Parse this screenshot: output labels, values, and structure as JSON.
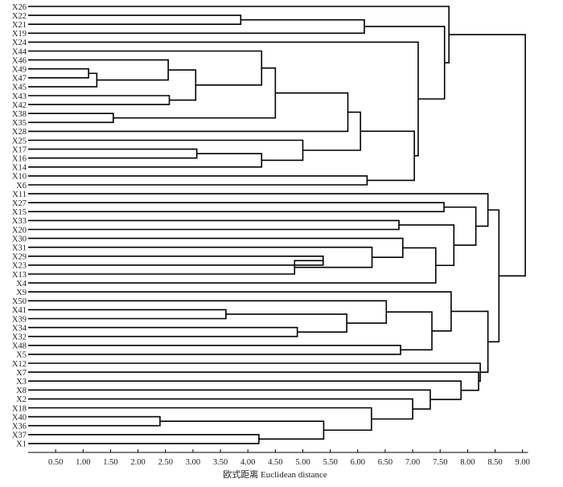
{
  "chart_data": {
    "type": "dendrogram",
    "orientation": "horizontal",
    "xlabel": "欧式距离 Euclidean distance",
    "xlim": [
      0,
      9.1
    ],
    "xticks": [
      "0.50",
      "1.00",
      "1.50",
      "2.00",
      "2.50",
      "3.00",
      "3.50",
      "4.00",
      "4.50",
      "5.00",
      "5.50",
      "6.00",
      "6.50",
      "7.00",
      "7.50",
      "8.00",
      "8.50",
      "9.00"
    ],
    "grid": false,
    "leaves": [
      "X26",
      "X22",
      "X21",
      "X19",
      "X24",
      "X44",
      "X46",
      "X49",
      "X47",
      "X45",
      "X43",
      "X42",
      "X38",
      "X35",
      "X28",
      "X25",
      "X17",
      "X16",
      "X14",
      "X10",
      "X6",
      "X11",
      "X27",
      "X15",
      "X33",
      "X20",
      "X30",
      "X31",
      "X29",
      "X23",
      "X13",
      "X4",
      "X9",
      "X50",
      "X41",
      "X39",
      "X34",
      "X32",
      "X48",
      "X5",
      "X12",
      "X7",
      "X3",
      "X8",
      "X2",
      "X18",
      "X40",
      "X36",
      "X37",
      "X1"
    ],
    "merges": [
      {
        "id": "A1",
        "a": "X49",
        "b": "X47",
        "height": 1.1
      },
      {
        "id": "A2",
        "a": "A1",
        "b": "X45",
        "height": 1.25
      },
      {
        "id": "A3",
        "a": "X46",
        "b": "A2",
        "height": 2.55
      },
      {
        "id": "A4",
        "a": "X43",
        "b": "X42",
        "height": 2.57
      },
      {
        "id": "A5",
        "a": "A3",
        "b": "A4",
        "height": 3.05
      },
      {
        "id": "A6",
        "a": "X44",
        "b": "A5",
        "height": 4.25
      },
      {
        "id": "A7",
        "a": "X38",
        "b": "X35",
        "height": 1.55
      },
      {
        "id": "A8",
        "a": "A6",
        "b": "A7",
        "height": 4.5
      },
      {
        "id": "A9",
        "a": "A8",
        "b": "X28",
        "height": 5.82
      },
      {
        "id": "A10",
        "a": "X17",
        "b": "X16",
        "height": 3.07
      },
      {
        "id": "A11",
        "a": "A10",
        "b": "X14",
        "height": 4.25
      },
      {
        "id": "A12",
        "a": "X25",
        "b": "A11",
        "height": 5.0
      },
      {
        "id": "A13",
        "a": "A9",
        "b": "A12",
        "height": 6.05
      },
      {
        "id": "A14",
        "a": "X10",
        "b": "X6",
        "height": 6.17
      },
      {
        "id": "A15",
        "a": "A13",
        "b": "A14",
        "height": 7.03
      },
      {
        "id": "A16",
        "a": "X24",
        "b": "A15",
        "height": 7.1
      },
      {
        "id": "A17",
        "a": "X22",
        "b": "X21",
        "height": 3.87
      },
      {
        "id": "A18",
        "a": "A17",
        "b": "X19",
        "height": 6.12
      },
      {
        "id": "A19",
        "a": "A18",
        "b": "A16",
        "height": 7.58
      },
      {
        "id": "A20",
        "a": "X26",
        "b": "A19",
        "height": 7.66
      },
      {
        "id": "B1",
        "a": "X27",
        "b": "X15",
        "height": 7.57
      },
      {
        "id": "B2",
        "a": "X33",
        "b": "X20",
        "height": 6.75
      },
      {
        "id": "B3",
        "a": "X29",
        "b": "X23",
        "height": 5.37
      },
      {
        "id": "B4",
        "a": "B3",
        "b": "X13",
        "height": 4.85
      },
      {
        "id": "B5",
        "a": "X31",
        "b": "B4",
        "height": 6.26
      },
      {
        "id": "B6",
        "a": "X30",
        "b": "B5",
        "height": 6.82
      },
      {
        "id": "B7",
        "a": "B6",
        "b": "X4",
        "height": 7.42
      },
      {
        "id": "B8",
        "a": "B2",
        "b": "B7",
        "height": 7.75
      },
      {
        "id": "B9",
        "a": "B1",
        "b": "B8",
        "height": 8.15
      },
      {
        "id": "B10",
        "a": "X11",
        "b": "B9",
        "height": 8.37
      },
      {
        "id": "C1",
        "a": "X41",
        "b": "X39",
        "height": 3.6
      },
      {
        "id": "C2",
        "a": "X34",
        "b": "X32",
        "height": 4.9
      },
      {
        "id": "C3",
        "a": "C1",
        "b": "C2",
        "height": 5.8
      },
      {
        "id": "C4",
        "a": "X50",
        "b": "C3",
        "height": 6.52
      },
      {
        "id": "C5",
        "a": "X48",
        "b": "X5",
        "height": 6.78
      },
      {
        "id": "C6",
        "a": "C4",
        "b": "C5",
        "height": 7.35
      },
      {
        "id": "C7",
        "a": "X9",
        "b": "C6",
        "height": 7.7
      },
      {
        "id": "D1",
        "a": "X40",
        "b": "X36",
        "height": 2.4
      },
      {
        "id": "D2",
        "a": "X37",
        "b": "X1",
        "height": 4.2
      },
      {
        "id": "D3",
        "a": "D1",
        "b": "D2",
        "height": 5.38
      },
      {
        "id": "D4",
        "a": "X18",
        "b": "D3",
        "height": 6.25
      },
      {
        "id": "D5",
        "a": "D4",
        "b": "X2",
        "height": 7.0
      },
      {
        "id": "D6",
        "a": "X8",
        "b": "D5",
        "height": 7.32
      },
      {
        "id": "D7",
        "a": "X3",
        "b": "D6",
        "height": 7.88
      },
      {
        "id": "D8",
        "a": "X7",
        "b": "D7",
        "height": 8.2
      },
      {
        "id": "D9",
        "a": "X12",
        "b": "D8",
        "height": 8.23
      },
      {
        "id": "E1",
        "a": "C7",
        "b": "D9",
        "height": 8.37
      },
      {
        "id": "E2",
        "a": "B10",
        "b": "E1",
        "height": 8.57
      },
      {
        "id": "ROOT",
        "a": "A20",
        "b": "E2",
        "height": 9.05
      }
    ]
  }
}
